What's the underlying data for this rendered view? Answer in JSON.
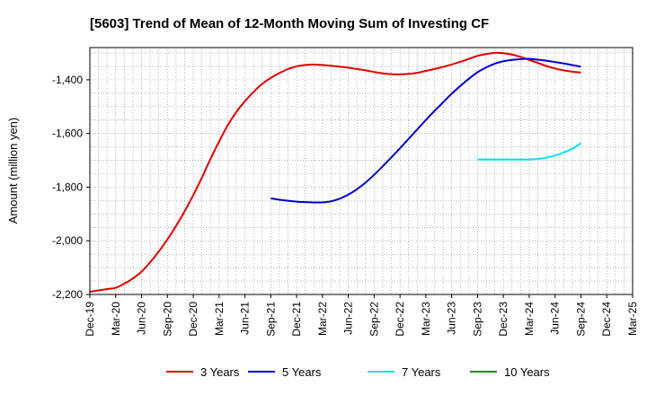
{
  "chart_data": {
    "type": "line",
    "title": "[5603]  Trend of Mean of 12-Month Moving Sum of Investing CF",
    "xlabel": "",
    "ylabel": "Amount (million yen)",
    "ylim": [
      -2200,
      -1280
    ],
    "yticks": [
      -1400,
      -1600,
      -1800,
      -2000,
      -2200
    ],
    "ytick_labels": [
      "-1,400",
      "-1,600",
      "-1,800",
      "-2,000",
      "-2,200"
    ],
    "xlim": [
      "2019-12",
      "2025-03"
    ],
    "xticks": [
      "2019-12",
      "2020-03",
      "2020-06",
      "2020-09",
      "2020-12",
      "2021-03",
      "2021-06",
      "2021-09",
      "2021-12",
      "2022-03",
      "2022-06",
      "2022-09",
      "2022-12",
      "2023-03",
      "2023-06",
      "2023-09",
      "2023-12",
      "2024-03",
      "2024-06",
      "2024-09",
      "2024-12",
      "2025-03"
    ],
    "xtick_labels": [
      "Dec-19",
      "Mar-20",
      "Jun-20",
      "Sep-20",
      "Dec-20",
      "Mar-21",
      "Jun-21",
      "Sep-21",
      "Dec-21",
      "Mar-22",
      "Jun-22",
      "Sep-22",
      "Dec-22",
      "Mar-23",
      "Jun-23",
      "Sep-23",
      "Dec-23",
      "Mar-24",
      "Jun-24",
      "Sep-24",
      "Dec-24",
      "Mar-25"
    ],
    "grid": true,
    "legend_position": "bottom",
    "series": [
      {
        "name": "3 Years",
        "color": "#e00000",
        "points": [
          [
            "2019-12",
            -2190
          ],
          [
            "2020-01",
            -2185
          ],
          [
            "2020-02",
            -2180
          ],
          [
            "2020-03",
            -2175
          ],
          [
            "2020-04",
            -2160
          ],
          [
            "2020-05",
            -2140
          ],
          [
            "2020-06",
            -2115
          ],
          [
            "2020-07",
            -2080
          ],
          [
            "2020-08",
            -2040
          ],
          [
            "2020-09",
            -1995
          ],
          [
            "2020-10",
            -1945
          ],
          [
            "2020-11",
            -1890
          ],
          [
            "2020-12",
            -1830
          ],
          [
            "2021-01",
            -1765
          ],
          [
            "2021-02",
            -1695
          ],
          [
            "2021-03",
            -1630
          ],
          [
            "2021-04",
            -1570
          ],
          [
            "2021-05",
            -1520
          ],
          [
            "2021-06",
            -1480
          ],
          [
            "2021-07",
            -1445
          ],
          [
            "2021-08",
            -1415
          ],
          [
            "2021-09",
            -1393
          ],
          [
            "2021-10",
            -1375
          ],
          [
            "2021-11",
            -1360
          ],
          [
            "2021-12",
            -1350
          ],
          [
            "2022-01",
            -1345
          ],
          [
            "2022-02",
            -1343
          ],
          [
            "2022-03",
            -1345
          ],
          [
            "2022-04",
            -1348
          ],
          [
            "2022-05",
            -1351
          ],
          [
            "2022-06",
            -1355
          ],
          [
            "2022-07",
            -1360
          ],
          [
            "2022-08",
            -1365
          ],
          [
            "2022-09",
            -1371
          ],
          [
            "2022-10",
            -1376
          ],
          [
            "2022-11",
            -1379
          ],
          [
            "2022-12",
            -1380
          ],
          [
            "2023-01",
            -1378
          ],
          [
            "2023-02",
            -1374
          ],
          [
            "2023-03",
            -1367
          ],
          [
            "2023-04",
            -1360
          ],
          [
            "2023-05",
            -1352
          ],
          [
            "2023-06",
            -1343
          ],
          [
            "2023-07",
            -1333
          ],
          [
            "2023-08",
            -1322
          ],
          [
            "2023-09",
            -1311
          ],
          [
            "2023-10",
            -1304
          ],
          [
            "2023-11",
            -1300
          ],
          [
            "2023-12",
            -1301
          ],
          [
            "2024-01",
            -1306
          ],
          [
            "2024-02",
            -1315
          ],
          [
            "2024-03",
            -1326
          ],
          [
            "2024-04",
            -1337
          ],
          [
            "2024-05",
            -1349
          ],
          [
            "2024-06",
            -1358
          ],
          [
            "2024-07",
            -1365
          ],
          [
            "2024-08",
            -1370
          ],
          [
            "2024-09",
            -1373
          ]
        ]
      },
      {
        "name": "5 Years",
        "color": "#0000cc",
        "points": [
          [
            "2021-09",
            -1842
          ],
          [
            "2021-10",
            -1847
          ],
          [
            "2021-11",
            -1851
          ],
          [
            "2021-12",
            -1854
          ],
          [
            "2022-01",
            -1856
          ],
          [
            "2022-02",
            -1857
          ],
          [
            "2022-03",
            -1857
          ],
          [
            "2022-04",
            -1853
          ],
          [
            "2022-05",
            -1843
          ],
          [
            "2022-06",
            -1828
          ],
          [
            "2022-07",
            -1808
          ],
          [
            "2022-08",
            -1783
          ],
          [
            "2022-09",
            -1754
          ],
          [
            "2022-10",
            -1722
          ],
          [
            "2022-11",
            -1689
          ],
          [
            "2022-12",
            -1655
          ],
          [
            "2023-01",
            -1620
          ],
          [
            "2023-02",
            -1585
          ],
          [
            "2023-03",
            -1550
          ],
          [
            "2023-04",
            -1516
          ],
          [
            "2023-05",
            -1484
          ],
          [
            "2023-06",
            -1452
          ],
          [
            "2023-07",
            -1423
          ],
          [
            "2023-08",
            -1396
          ],
          [
            "2023-09",
            -1372
          ],
          [
            "2023-10",
            -1354
          ],
          [
            "2023-11",
            -1340
          ],
          [
            "2023-12",
            -1331
          ],
          [
            "2024-01",
            -1326
          ],
          [
            "2024-02",
            -1323
          ],
          [
            "2024-03",
            -1322
          ],
          [
            "2024-04",
            -1325
          ],
          [
            "2024-05",
            -1329
          ],
          [
            "2024-06",
            -1334
          ],
          [
            "2024-07",
            -1339
          ],
          [
            "2024-08",
            -1345
          ],
          [
            "2024-09",
            -1351
          ]
        ]
      },
      {
        "name": "7 Years",
        "color": "#00e5ee",
        "points": [
          [
            "2023-09",
            -1697
          ],
          [
            "2023-10",
            -1697
          ],
          [
            "2023-11",
            -1697
          ],
          [
            "2023-12",
            -1697
          ],
          [
            "2024-01",
            -1697
          ],
          [
            "2024-02",
            -1697
          ],
          [
            "2024-03",
            -1697
          ],
          [
            "2024-04",
            -1695
          ],
          [
            "2024-05",
            -1690
          ],
          [
            "2024-06",
            -1682
          ],
          [
            "2024-07",
            -1671
          ],
          [
            "2024-08",
            -1657
          ],
          [
            "2024-09",
            -1636
          ]
        ]
      },
      {
        "name": "10 Years",
        "color": "#228b22",
        "points": []
      }
    ]
  }
}
